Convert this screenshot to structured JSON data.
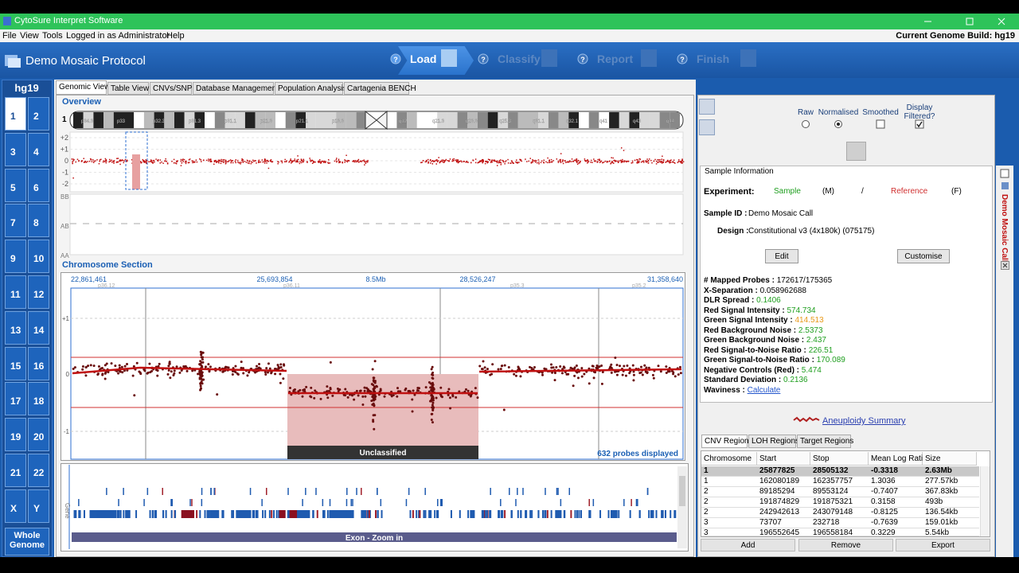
{
  "window": {
    "title": "CytoSure Interpret Software"
  },
  "menu": [
    "File",
    "View",
    "Tools",
    "Logged in as Administrator",
    "Help"
  ],
  "genome_build": "Current Genome Build: hg19",
  "protocol": "Demo Mosaic Protocol",
  "steps": [
    {
      "label": "Load",
      "help": "?"
    },
    {
      "label": "Classify",
      "help": "?"
    },
    {
      "label": "Report",
      "help": "?"
    },
    {
      "label": "Finish",
      "help": "?"
    }
  ],
  "build_label": "hg19",
  "chromosomes": [
    "1",
    "2",
    "3",
    "4",
    "5",
    "6",
    "7",
    "8",
    "9",
    "10",
    "11",
    "12",
    "13",
    "14",
    "15",
    "16",
    "17",
    "18",
    "19",
    "20",
    "21",
    "22",
    "X",
    "Y"
  ],
  "whole_genome": "Whole Genome",
  "tabs": [
    "Genomic View",
    "Table View",
    "CNVs/SNPs",
    "Database Management",
    "Population Analysis",
    "Cartagenia BENCH"
  ],
  "overview": {
    "title": "Overview",
    "chromosome": "1",
    "p_bands": [
      "p34.3",
      "p33",
      "p32.3",
      "p31.3",
      "p31.1",
      "p21.3",
      "p21.1",
      "p13.3"
    ],
    "q_bands": [
      "q12",
      "q21.3",
      "q23.3",
      "q25.3",
      "q31.1",
      "q32.1",
      "q41",
      "q43",
      "q44"
    ],
    "axis": [
      "+2",
      "+1",
      "0",
      "-1",
      "-2"
    ],
    "baf_axis": [
      "BB",
      "AB",
      "AA"
    ]
  },
  "section": {
    "title": "Chromosome Section",
    "positions": [
      "22,861,461",
      "25,693,854",
      "8.5Mb",
      "28,526,247",
      "31,358,640"
    ],
    "bands": [
      "p36.12",
      "p36.11",
      "p35.3",
      "p35.2"
    ],
    "axis": [
      "+1",
      "0",
      "-1"
    ],
    "region_label": "Unclassified",
    "probes": "632 probes displayed"
  },
  "gene_track": {
    "label": "Gene",
    "exon": "Exon - Zoom in"
  },
  "display_options": [
    "Raw",
    "Normalised",
    "Smoothed",
    "Display Filtered?"
  ],
  "sample_info": {
    "title": "Sample Information",
    "experiment_label": "Experiment:",
    "sample": "Sample",
    "sample_sex": "(M)",
    "separator": "/",
    "reference": "Reference",
    "reference_sex": "(F)",
    "id_label": "Sample ID :",
    "id": "Demo Mosaic Call",
    "design_label": "Design :",
    "design": "Constitutional v3 (4x180k) (075175)",
    "edit": "Edit",
    "customise": "Customise",
    "metrics": [
      {
        "label": "# Mapped Probes :",
        "value": "172617/175365",
        "color": "#000000"
      },
      {
        "label": "X-Separation :",
        "value": "0.058962688",
        "color": "#000000"
      },
      {
        "label": "DLR Spread :",
        "value": "0.1406",
        "color": "#1e9e1e"
      },
      {
        "label": "Red Signal Intensity :",
        "value": "574.734",
        "color": "#1e9e1e"
      },
      {
        "label": "Green Signal Intensity :",
        "value": "414.513",
        "color": "#e89a1c"
      },
      {
        "label": "Red Background Noise :",
        "value": "2.5373",
        "color": "#1e9e1e"
      },
      {
        "label": "Green Background Noise :",
        "value": "2.437",
        "color": "#1e9e1e"
      },
      {
        "label": "Red Signal-to-Noise Ratio :",
        "value": "226.51",
        "color": "#1e9e1e"
      },
      {
        "label": "Green Signal-to-Noise Ratio :",
        "value": "170.089",
        "color": "#1e9e1e"
      },
      {
        "label": "Negative Controls (Red) :",
        "value": "5.474",
        "color": "#1e9e1e"
      },
      {
        "label": "Standard Deviation :",
        "value": "0.2136",
        "color": "#1e9e1e"
      },
      {
        "label": "Waviness :",
        "value": "Calculate",
        "color": "#2255cc"
      }
    ]
  },
  "aneuploidy": "Aneuploidy Summary",
  "region_tabs": [
    "CNV Regions",
    "LOH Regions",
    "Target Regions"
  ],
  "table": {
    "columns": [
      "Chromosome",
      "Start",
      "Stop",
      "Mean Log Ratio",
      "Size"
    ],
    "rows": [
      [
        "1",
        "25877825",
        "28505132",
        "-0.3318",
        "2.63Mb"
      ],
      [
        "1",
        "162080189",
        "162357757",
        "1.3036",
        "277.57kb"
      ],
      [
        "2",
        "89185294",
        "89553124",
        "-0.7407",
        "367.83kb"
      ],
      [
        "2",
        "191874829",
        "191875321",
        "0.3158",
        "493b"
      ],
      [
        "2",
        "242942613",
        "243079148",
        "-0.8125",
        "136.54kb"
      ],
      [
        "3",
        "73707",
        "232718",
        "-0.7639",
        "159.01kb"
      ],
      [
        "3",
        "196552645",
        "196558184",
        "0.3229",
        "5.54kb"
      ]
    ]
  },
  "buttons": [
    "Add",
    "Remove",
    "Export"
  ],
  "side_label": "Demo Mosaic Call"
}
